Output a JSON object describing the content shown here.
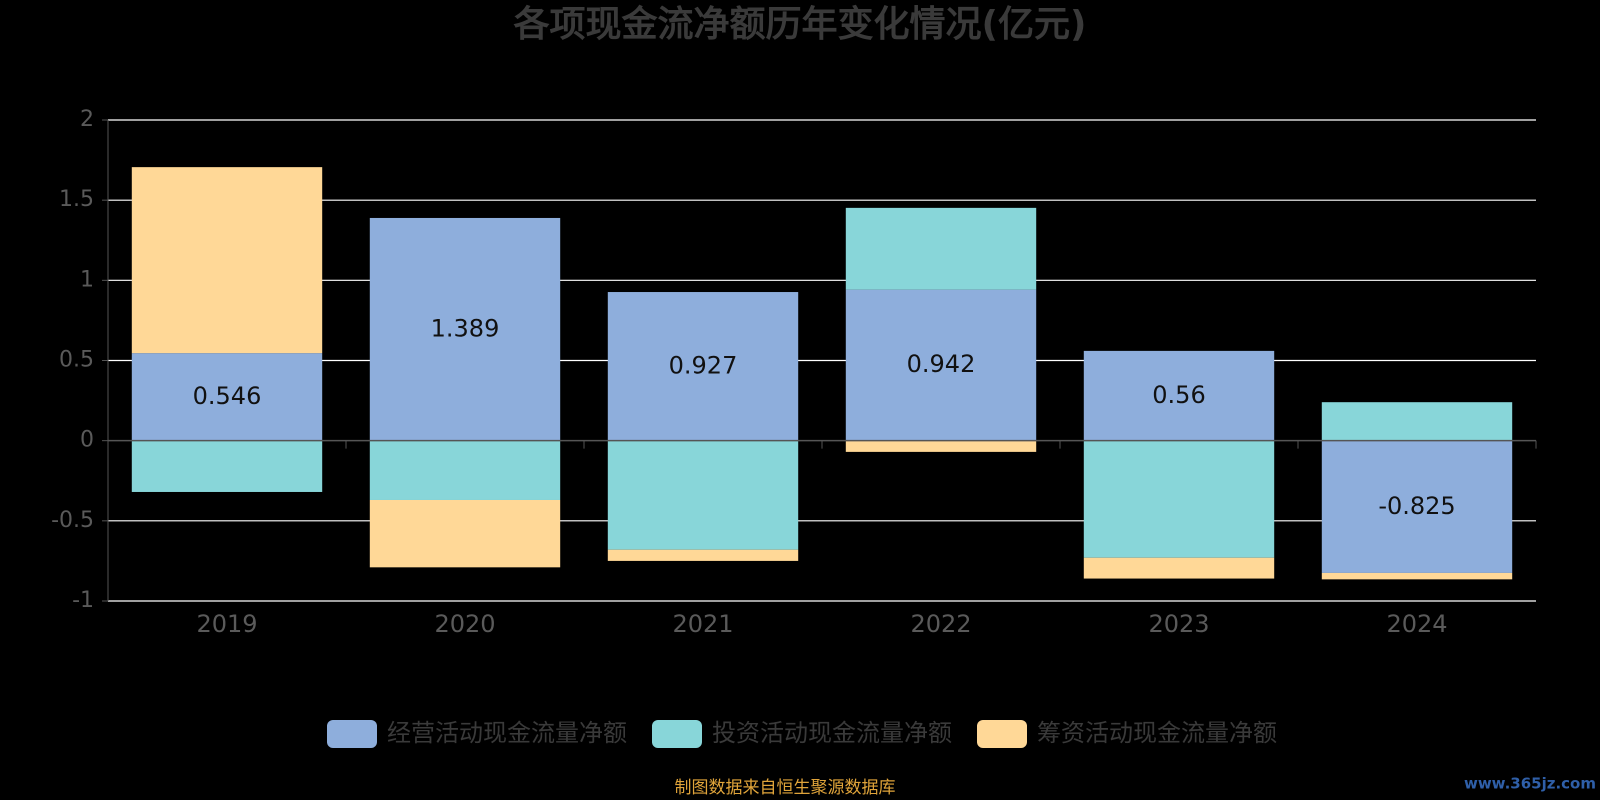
{
  "chart_data": {
    "type": "bar",
    "stacked": true,
    "title": "各项现金流净额历年变化情况(亿元)",
    "categories": [
      "2019",
      "2020",
      "2021",
      "2022",
      "2023",
      "2024"
    ],
    "ylim": [
      -1,
      2
    ],
    "y_ticks": [
      2,
      1.5,
      1,
      0.5,
      0,
      -0.5,
      -1
    ],
    "y_tick_labels": [
      "2",
      "1.5",
      "1",
      "0.5",
      "0",
      "-0.5",
      "-1"
    ],
    "grid": true,
    "legend_position": "bottom",
    "series": [
      {
        "name": "经营活动现金流量净额",
        "color": "#8eaedc",
        "values": [
          0.546,
          1.389,
          0.927,
          0.942,
          0.56,
          -0.825
        ],
        "labels": [
          "0.546",
          "1.389",
          "0.927",
          "0.942",
          "0.56",
          "-0.825"
        ]
      },
      {
        "name": "投资活动现金流量净额",
        "color": "#88d6d9",
        "values": [
          -0.32,
          -0.37,
          -0.68,
          0.51,
          -0.73,
          0.24
        ]
      },
      {
        "name": "筹资活动现金流量净额",
        "color": "#ffd897",
        "values": [
          1.16,
          -0.42,
          -0.07,
          -0.07,
          -0.13,
          -0.04
        ]
      }
    ]
  },
  "footnote": "制图数据来自恒生聚源数据库",
  "watermark": "www.365jz.com",
  "colors": {
    "background": "#000000",
    "gridline": "#ffffff",
    "axis": "#555555"
  }
}
